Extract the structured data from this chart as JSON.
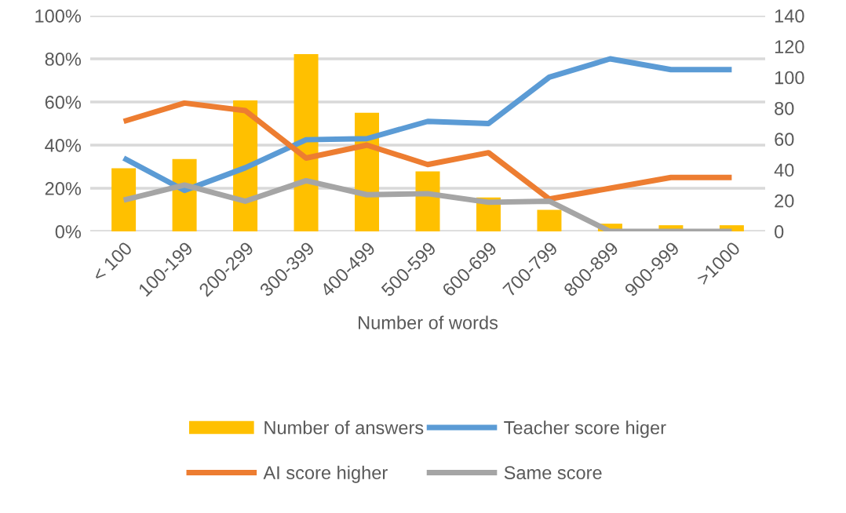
{
  "chart_data": {
    "type": "line",
    "xlabel": "Number of words",
    "categories": [
      "< 100",
      "100-199",
      "200-299",
      "300-399",
      "400-499",
      "500-599",
      "600-699",
      "700-799",
      "800-899",
      "900-999",
      ">1000"
    ],
    "series": [
      {
        "name": "Number of answers",
        "type": "bar",
        "axis": "y2",
        "color": "#ffc000",
        "values": [
          41,
          47,
          85,
          115,
          77,
          39,
          22,
          14,
          5,
          4,
          4
        ]
      },
      {
        "name": "Teacher score higer",
        "color": "#5b9bd5",
        "values": [
          34,
          19,
          29.5,
          42.5,
          43,
          51,
          50,
          71.5,
          80,
          75,
          75
        ]
      },
      {
        "name": "AI score higher",
        "color": "#ed7d31",
        "values": [
          51,
          59.5,
          56,
          34,
          40,
          31,
          36.5,
          15,
          20,
          25,
          25
        ]
      },
      {
        "name": "Same score",
        "color": "#a5a5a5",
        "values": [
          14.5,
          21.5,
          14,
          23.5,
          17,
          17.5,
          13.5,
          14,
          0,
          0,
          0
        ]
      }
    ],
    "ylim": [
      0,
      100
    ],
    "yticks": [
      {
        "value": 0,
        "label": "0%"
      },
      {
        "value": 20,
        "label": "20%"
      },
      {
        "value": 40,
        "label": "40%"
      },
      {
        "value": 60,
        "label": "60%"
      },
      {
        "value": 80,
        "label": "80%"
      },
      {
        "value": 100,
        "label": "100%"
      }
    ],
    "y2lim": [
      0,
      140
    ],
    "y2ticks": [
      0,
      20,
      40,
      60,
      80,
      100,
      120,
      140
    ],
    "grid": "y",
    "legend": "bottom",
    "marker": "none",
    "line_style": "solid"
  }
}
